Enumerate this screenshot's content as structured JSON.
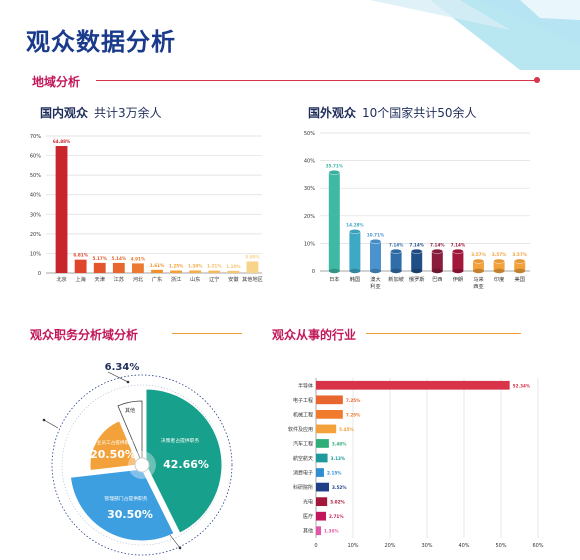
{
  "page_title": "观众数据分析",
  "sections": {
    "region": "地域分析",
    "job": "观众职务分析域分析",
    "industry": "观众从事的行业"
  },
  "domestic": {
    "title": "国内观众",
    "subtitle": "共计3万余人"
  },
  "foreign": {
    "title": "国外观众",
    "subtitle": "10个国家共计50余人"
  },
  "chart_data": [
    {
      "type": "bar",
      "categories": [
        "北京",
        "上海",
        "天津",
        "江苏",
        "河北",
        "广东",
        "浙江",
        "山东",
        "辽宁",
        "安徽",
        "其他地区"
      ],
      "values": [
        64.88,
        6.81,
        5.17,
        5.14,
        4.91,
        1.61,
        1.25,
        1.3,
        1.21,
        1.1,
        5.9
      ],
      "value_labels": [
        "64.88%",
        "6.81%",
        "5.17%",
        "5.14%",
        "4.91%",
        "1.61%",
        "1.25%",
        "1.30%",
        "1.21%",
        "1.10%",
        "5.90%"
      ],
      "colors": [
        "#c9262b",
        "#e0442a",
        "#e4552c",
        "#e8672e",
        "#ec7a30",
        "#f0902f",
        "#f39f3a",
        "#f5ad4a",
        "#f6ba5c",
        "#f7c66e",
        "#f8d48a"
      ],
      "yticks": [
        "0",
        "10%",
        "20%",
        "30%",
        "40%",
        "50%",
        "60%",
        "70%"
      ],
      "ylim": [
        0,
        70
      ],
      "grid": true
    },
    {
      "type": "bar",
      "categories": [
        "日本",
        "韩国",
        "澳大利亚",
        "新加坡",
        "俄罗斯",
        "巴西",
        "伊朗",
        "马来西亚",
        "印度",
        "美国"
      ],
      "category_lines": [
        [
          "日本"
        ],
        [
          "韩国"
        ],
        [
          "澳大",
          "利亚"
        ],
        [
          "新加坡"
        ],
        [
          "俄罗斯"
        ],
        [
          "巴西"
        ],
        [
          "伊朗"
        ],
        [
          "马来",
          "西亚"
        ],
        [
          "印度"
        ],
        [
          "美国"
        ]
      ],
      "values": [
        35.71,
        14.28,
        10.71,
        7.14,
        7.14,
        7.14,
        7.14,
        3.57,
        3.57,
        3.57
      ],
      "value_labels": [
        "35.71%",
        "14.28%",
        "10.71%",
        "7.14%",
        "7.14%",
        "7.14%",
        "7.14%",
        "3.57%",
        "3.57%",
        "3.57%"
      ],
      "colors": [
        "#3fb8a4",
        "#3fa8c4",
        "#4a93cf",
        "#2f6ea8",
        "#1f4f86",
        "#8a1c3c",
        "#a3173b",
        "#f3a13a",
        "#f3a13a",
        "#f3a13a"
      ],
      "yticks": [
        "0",
        "10%",
        "20%",
        "30%",
        "40%",
        "50%"
      ],
      "ylim": [
        0,
        50
      ],
      "grid": true
    },
    {
      "type": "pie",
      "labels": [
        "决策者占提供职务",
        "管理部门占提供职务",
        "专业员工占提供职务",
        "其他"
      ],
      "values": [
        42.66,
        30.5,
        20.5,
        6.34
      ],
      "value_labels": [
        "42.66%",
        "30.50%",
        "20.50%",
        "6.34%"
      ],
      "colors": [
        "#17a08c",
        "#3d9ee0",
        "#f3a13a",
        "#ffffff"
      ]
    },
    {
      "type": "bar",
      "orientation": "horizontal",
      "categories": [
        "半导体",
        "电子工程",
        "机械工程",
        "软件及应用",
        "汽车工程",
        "航空航天",
        "消费电子",
        "科研院所",
        "光电",
        "医疗",
        "其他"
      ],
      "values": [
        52.34,
        7.25,
        7.25,
        5.45,
        3.48,
        3.13,
        2.15,
        3.52,
        3.02,
        2.71,
        1.36
      ],
      "value_labels": [
        "52.34%",
        "7.25%",
        "7.25%",
        "5.45%",
        "3.48%",
        "3.13%",
        "2.15%",
        "3.52%",
        "3.02%",
        "2.71%",
        "1.36%"
      ],
      "colors": [
        "#d9334a",
        "#e8672e",
        "#f07b2f",
        "#f3a13a",
        "#2fae7a",
        "#1e9a9c",
        "#2f8fd0",
        "#1f3f86",
        "#a3173b",
        "#c2185b",
        "#e055a6"
      ],
      "xticks": [
        "0",
        "10%",
        "20%",
        "30%",
        "40%",
        "50%",
        "60%"
      ],
      "xlim": [
        0,
        60
      ],
      "grid": true
    }
  ]
}
